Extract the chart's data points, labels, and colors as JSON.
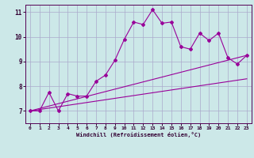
{
  "background_color": "#cce8e8",
  "grid_color": "#aaaacc",
  "line_color": "#990099",
  "xlabel": "Windchill (Refroidissement éolien,°C)",
  "xlim": [
    -0.5,
    23.5
  ],
  "ylim": [
    6.5,
    11.3
  ],
  "yticks": [
    7,
    8,
    9,
    10,
    11
  ],
  "xticks": [
    0,
    1,
    2,
    3,
    4,
    5,
    6,
    7,
    8,
    9,
    10,
    11,
    12,
    13,
    14,
    15,
    16,
    17,
    18,
    19,
    20,
    21,
    22,
    23
  ],
  "line1_x": [
    0,
    1,
    2,
    3,
    4,
    5,
    6,
    7,
    8,
    9,
    10,
    11,
    12,
    13,
    14,
    15,
    16,
    17,
    18,
    19,
    20,
    21,
    22,
    23
  ],
  "line1_y": [
    7.0,
    7.0,
    7.75,
    7.0,
    7.7,
    7.6,
    7.6,
    8.2,
    8.45,
    9.05,
    9.9,
    10.6,
    10.5,
    11.1,
    10.55,
    10.6,
    9.6,
    9.5,
    10.15,
    9.85,
    10.15,
    9.15,
    8.9,
    9.25
  ],
  "line2_x": [
    0,
    23
  ],
  "line2_y": [
    7.0,
    9.25
  ],
  "line3_x": [
    0,
    23
  ],
  "line3_y": [
    7.0,
    8.3
  ]
}
